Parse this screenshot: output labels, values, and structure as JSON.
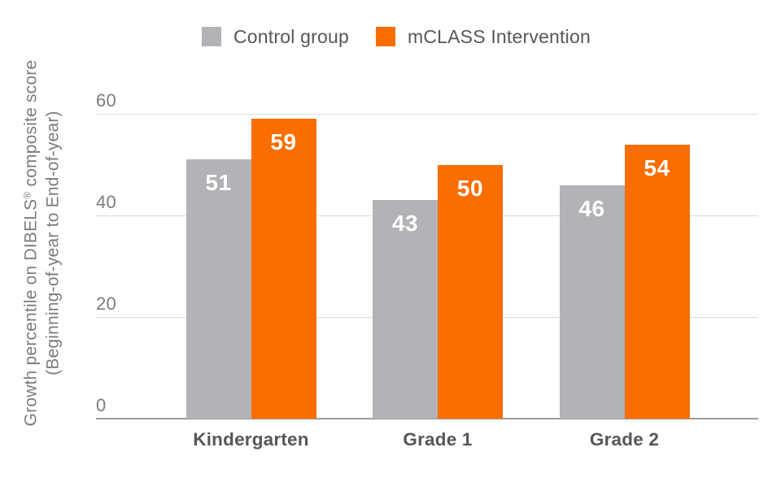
{
  "chart_data": {
    "type": "bar",
    "title": "",
    "categories": [
      "Kindergarten",
      "Grade 1",
      "Grade 2"
    ],
    "series": [
      {
        "name": "Control group",
        "color": "#b1b3b6",
        "values": [
          51,
          43,
          46
        ]
      },
      {
        "name": "mCLASS Intervention",
        "color": "#fa6e00",
        "values": [
          59,
          50,
          54
        ]
      }
    ],
    "ylabel": {
      "line1_pre": "Growth percentile on DIBELS",
      "line1_reg_mark": "®",
      "line1_post": " composite score",
      "line2": "(Beginning-of-year to End-of-year)"
    },
    "xlabel": "",
    "ylim": [
      0,
      60
    ],
    "yticks": [
      0,
      20,
      40,
      60
    ],
    "grid": "horizontal",
    "legend_position": "top",
    "value_label_style": "white bold inside bar top"
  },
  "colors": {
    "background": "#ffffff",
    "bar_gray": "#b1b3b6",
    "bar_orange": "#fa6e00",
    "gridline": "#d9dadb",
    "axis_baseline": "#9b9da0",
    "tick_text": "#7b7c7f",
    "category_text": "#565759",
    "legend_text": "#565759",
    "value_text": "#ffffff"
  }
}
